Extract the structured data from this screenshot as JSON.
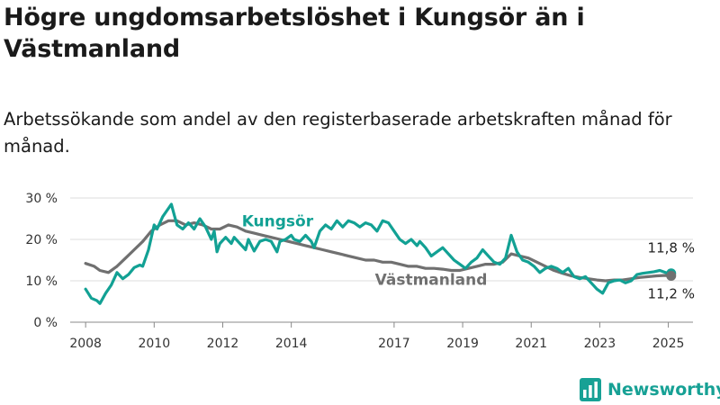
{
  "header": {
    "title": "Högre ungdomsarbetslöshet i Kungsör än i Västmanland",
    "subtitle": "Arbetssökande som andel av den registerbaserade arbetskraften månad för månad."
  },
  "brand": {
    "name": "Newsworthy",
    "icon": "bar-chart-icon",
    "color": "#17a195"
  },
  "chart_data": {
    "type": "line",
    "y_ticks": [
      "0 %",
      "10 %",
      "20 %",
      "30 %"
    ],
    "ylim": [
      0,
      30
    ],
    "x_ticks": [
      "2008",
      "2010",
      "2012",
      "2014",
      "2017",
      "2019",
      "2021",
      "2023",
      "2025"
    ],
    "grid": "horizontal",
    "series": [
      {
        "name": "Kungsör",
        "color": "#12a194",
        "end_label": "11,8 %",
        "points": [
          [
            "2008-01",
            8
          ],
          [
            "2008-03",
            5.8
          ],
          [
            "2008-05",
            5.2
          ],
          [
            "2008-06",
            4.5
          ],
          [
            "2008-08",
            7
          ],
          [
            "2008-10",
            9
          ],
          [
            "2008-12",
            12
          ],
          [
            "2009-02",
            10.5
          ],
          [
            "2009-04",
            11.5
          ],
          [
            "2009-06",
            13.2
          ],
          [
            "2009-08",
            13.8
          ],
          [
            "2009-09",
            13.5
          ],
          [
            "2009-11",
            17.5
          ],
          [
            "2010-01",
            23.5
          ],
          [
            "2010-02",
            22.5
          ],
          [
            "2010-04",
            25.5
          ],
          [
            "2010-06",
            27.5
          ],
          [
            "2010-07",
            28.5
          ],
          [
            "2010-08",
            26
          ],
          [
            "2010-09",
            23.5
          ],
          [
            "2010-11",
            22.5
          ],
          [
            "2011-01",
            24
          ],
          [
            "2011-03",
            22.5
          ],
          [
            "2011-05",
            25
          ],
          [
            "2011-07",
            23
          ],
          [
            "2011-09",
            20
          ],
          [
            "2011-10",
            22
          ],
          [
            "2011-11",
            17
          ],
          [
            "2011-12",
            19
          ],
          [
            "2012-02",
            20.5
          ],
          [
            "2012-04",
            19
          ],
          [
            "2012-05",
            20.5
          ],
          [
            "2012-07",
            19
          ],
          [
            "2012-09",
            17.5
          ],
          [
            "2012-10",
            20
          ],
          [
            "2012-12",
            17.2
          ],
          [
            "2013-02",
            19.5
          ],
          [
            "2013-04",
            20
          ],
          [
            "2013-06",
            19.5
          ],
          [
            "2013-08",
            17
          ],
          [
            "2013-09",
            19.5
          ],
          [
            "2013-11",
            20
          ],
          [
            "2014-01",
            21
          ],
          [
            "2014-02",
            20
          ],
          [
            "2014-04",
            19.5
          ],
          [
            "2014-06",
            21
          ],
          [
            "2014-08",
            19.5
          ],
          [
            "2014-09",
            18
          ],
          [
            "2014-11",
            22
          ],
          [
            "2015-01",
            23.5
          ],
          [
            "2015-03",
            22.5
          ],
          [
            "2015-05",
            24.5
          ],
          [
            "2015-07",
            23
          ],
          [
            "2015-09",
            24.5
          ],
          [
            "2015-11",
            24
          ],
          [
            "2016-01",
            23
          ],
          [
            "2016-03",
            24
          ],
          [
            "2016-05",
            23.5
          ],
          [
            "2016-07",
            22
          ],
          [
            "2016-09",
            24.5
          ],
          [
            "2016-11",
            24
          ],
          [
            "2017-01",
            22
          ],
          [
            "2017-03",
            20
          ],
          [
            "2017-05",
            19
          ],
          [
            "2017-07",
            20
          ],
          [
            "2017-09",
            18.5
          ],
          [
            "2017-10",
            19.5
          ],
          [
            "2017-12",
            18
          ],
          [
            "2018-02",
            16
          ],
          [
            "2018-04",
            17
          ],
          [
            "2018-06",
            18
          ],
          [
            "2018-08",
            16.5
          ],
          [
            "2018-10",
            15
          ],
          [
            "2018-12",
            14
          ],
          [
            "2019-02",
            13
          ],
          [
            "2019-04",
            14.5
          ],
          [
            "2019-06",
            15.5
          ],
          [
            "2019-08",
            17.5
          ],
          [
            "2019-10",
            16
          ],
          [
            "2019-12",
            14.5
          ],
          [
            "2020-02",
            14
          ],
          [
            "2020-04",
            15.5
          ],
          [
            "2020-06",
            21
          ],
          [
            "2020-08",
            17
          ],
          [
            "2020-10",
            15
          ],
          [
            "2020-12",
            14.5
          ],
          [
            "2021-02",
            13.5
          ],
          [
            "2021-04",
            12
          ],
          [
            "2021-06",
            13
          ],
          [
            "2021-08",
            13.5
          ],
          [
            "2021-10",
            13
          ],
          [
            "2021-12",
            12
          ],
          [
            "2022-02",
            13
          ],
          [
            "2022-04",
            11
          ],
          [
            "2022-06",
            10.5
          ],
          [
            "2022-08",
            11
          ],
          [
            "2022-10",
            9.5
          ],
          [
            "2022-12",
            8
          ],
          [
            "2023-02",
            7
          ],
          [
            "2023-04",
            9.5
          ],
          [
            "2023-06",
            10
          ],
          [
            "2023-08",
            10.2
          ],
          [
            "2023-10",
            9.5
          ],
          [
            "2023-12",
            10
          ],
          [
            "2024-02",
            11.5
          ],
          [
            "2024-04",
            11.8
          ],
          [
            "2024-06",
            12
          ],
          [
            "2024-08",
            12.2
          ],
          [
            "2024-10",
            12.5
          ],
          [
            "2024-12",
            12
          ],
          [
            "2025-02",
            11.8
          ]
        ]
      },
      {
        "name": "Västmanland",
        "color": "#707070",
        "end_label": "11,2 %",
        "points": [
          [
            "2008-01",
            14.2
          ],
          [
            "2008-04",
            13.5
          ],
          [
            "2008-06",
            12.5
          ],
          [
            "2008-09",
            12
          ],
          [
            "2008-12",
            13.5
          ],
          [
            "2009-03",
            15.5
          ],
          [
            "2009-06",
            17.5
          ],
          [
            "2009-09",
            19.5
          ],
          [
            "2009-12",
            22
          ],
          [
            "2010-03",
            23.5
          ],
          [
            "2010-06",
            24.5
          ],
          [
            "2010-09",
            24.5
          ],
          [
            "2010-12",
            23.5
          ],
          [
            "2011-03",
            24
          ],
          [
            "2011-06",
            23.5
          ],
          [
            "2011-09",
            22.5
          ],
          [
            "2011-12",
            22.5
          ],
          [
            "2012-03",
            23.5
          ],
          [
            "2012-06",
            23
          ],
          [
            "2012-09",
            22
          ],
          [
            "2012-12",
            21.5
          ],
          [
            "2013-03",
            21
          ],
          [
            "2013-06",
            20.5
          ],
          [
            "2013-09",
            20
          ],
          [
            "2013-12",
            19.5
          ],
          [
            "2014-03",
            19
          ],
          [
            "2014-06",
            18.5
          ],
          [
            "2014-09",
            18
          ],
          [
            "2014-12",
            17.5
          ],
          [
            "2015-03",
            17
          ],
          [
            "2015-06",
            16.5
          ],
          [
            "2015-09",
            16
          ],
          [
            "2015-12",
            15.5
          ],
          [
            "2016-03",
            15
          ],
          [
            "2016-06",
            15
          ],
          [
            "2016-09",
            14.5
          ],
          [
            "2016-12",
            14.5
          ],
          [
            "2017-03",
            14
          ],
          [
            "2017-06",
            13.5
          ],
          [
            "2017-09",
            13.5
          ],
          [
            "2017-12",
            13
          ],
          [
            "2018-03",
            13
          ],
          [
            "2018-06",
            12.8
          ],
          [
            "2018-09",
            12.5
          ],
          [
            "2018-12",
            12.5
          ],
          [
            "2019-03",
            13
          ],
          [
            "2019-06",
            13.5
          ],
          [
            "2019-09",
            14
          ],
          [
            "2019-12",
            14
          ],
          [
            "2020-03",
            14.5
          ],
          [
            "2020-06",
            16.5
          ],
          [
            "2020-09",
            16
          ],
          [
            "2020-12",
            15.5
          ],
          [
            "2021-03",
            14.5
          ],
          [
            "2021-06",
            13.5
          ],
          [
            "2021-09",
            12.5
          ],
          [
            "2021-12",
            11.8
          ],
          [
            "2022-03",
            11.2
          ],
          [
            "2022-06",
            10.8
          ],
          [
            "2022-09",
            10.5
          ],
          [
            "2022-12",
            10.2
          ],
          [
            "2023-03",
            10
          ],
          [
            "2023-06",
            10.2
          ],
          [
            "2023-09",
            10.2
          ],
          [
            "2023-12",
            10.5
          ],
          [
            "2024-03",
            10.8
          ],
          [
            "2024-06",
            11
          ],
          [
            "2024-09",
            11.2
          ],
          [
            "2024-12",
            11.3
          ],
          [
            "2025-02",
            11.2
          ]
        ]
      }
    ]
  }
}
